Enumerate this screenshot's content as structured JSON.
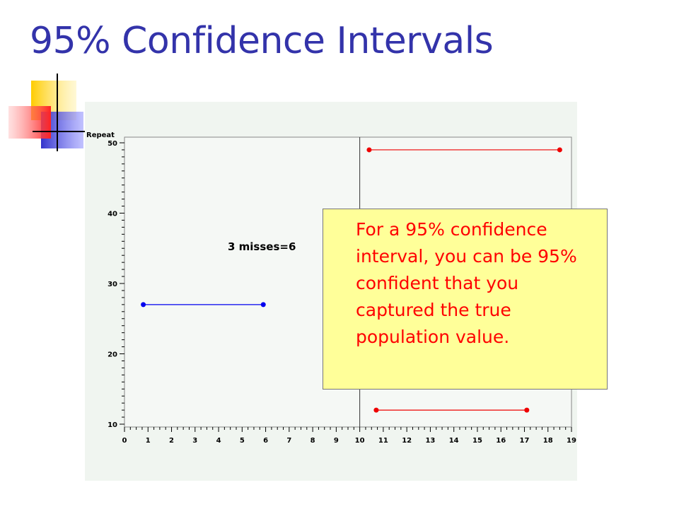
{
  "slide": {
    "title": "95% Confidence Intervals"
  },
  "chart_data": {
    "type": "line",
    "y_axis_label": "Repeat",
    "xlim": [
      0,
      19
    ],
    "ylim": [
      10,
      50
    ],
    "x_ticks": [
      0,
      1,
      2,
      3,
      4,
      5,
      6,
      7,
      8,
      9,
      10,
      11,
      12,
      13,
      14,
      15,
      16,
      17,
      18,
      19
    ],
    "y_ticks": [
      10,
      20,
      30,
      40,
      50
    ],
    "reference_line_x": 10,
    "annotation": "3 misses=6",
    "intervals": [
      {
        "repeat": 49,
        "lower": 10.4,
        "upper": 18.5,
        "color": "#ee0000"
      },
      {
        "repeat": 27,
        "lower": 0.8,
        "upper": 5.9,
        "color": "#0000ee"
      },
      {
        "repeat": 12,
        "lower": 10.7,
        "upper": 17.1,
        "color": "#ee0000"
      }
    ]
  },
  "callout": {
    "text": "For a 95% confidence interval, you can be 95% confident that you captured the true population value."
  }
}
